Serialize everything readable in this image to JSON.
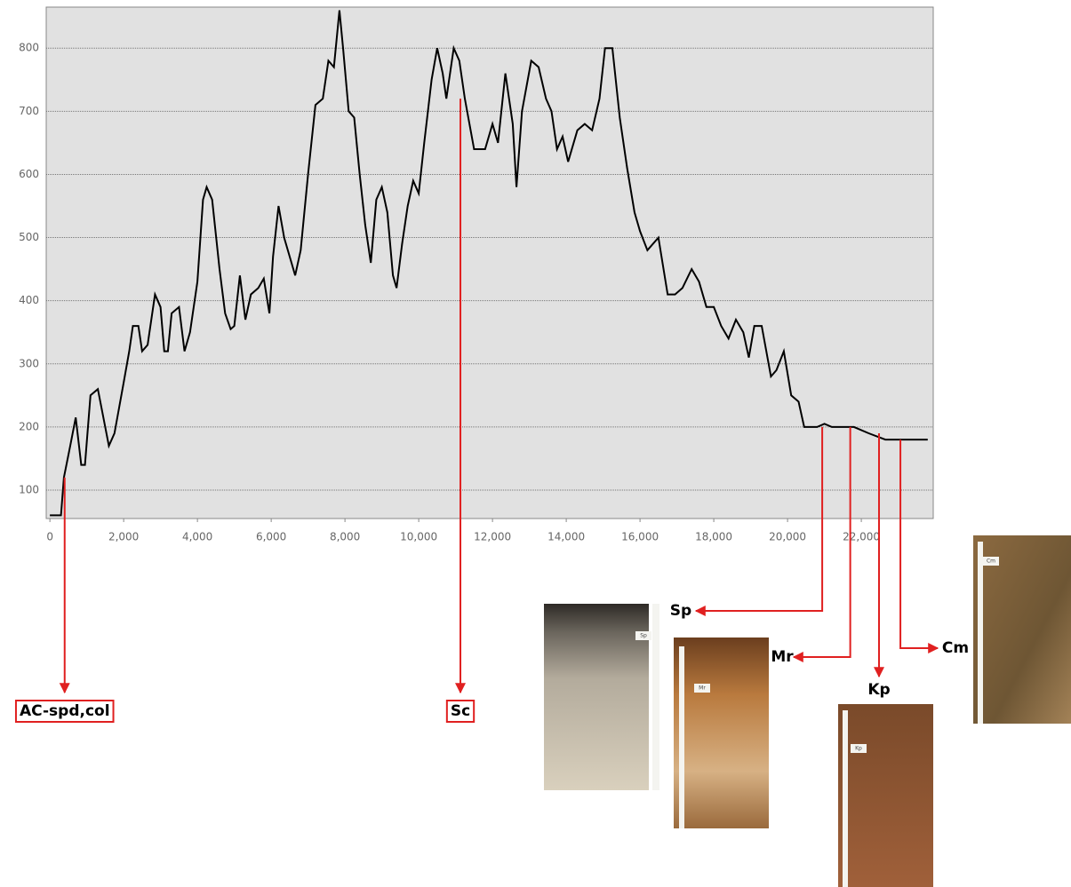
{
  "chart_data": {
    "type": "line",
    "x": [
      0,
      300,
      380,
      550,
      700,
      850,
      950,
      1100,
      1300,
      1600,
      1750,
      2000,
      2150,
      2250,
      2400,
      2500,
      2650,
      2850,
      3000,
      3100,
      3200,
      3300,
      3500,
      3650,
      3800,
      4000,
      4150,
      4250,
      4400,
      4600,
      4750,
      4900,
      5000,
      5150,
      5300,
      5450,
      5650,
      5800,
      5950,
      6050,
      6200,
      6350,
      6500,
      6650,
      6800,
      7000,
      7200,
      7400,
      7550,
      7700,
      7850,
      7950,
      8100,
      8250,
      8400,
      8550,
      8700,
      8850,
      9000,
      9150,
      9300,
      9400,
      9550,
      9700,
      9850,
      10000,
      10150,
      10350,
      10500,
      10650,
      10750,
      10950,
      11100,
      11250,
      11500,
      11800,
      12000,
      12150,
      12350,
      12550,
      12650,
      12800,
      13050,
      13250,
      13450,
      13600,
      13750,
      13900,
      14050,
      14300,
      14500,
      14700,
      14900,
      15050,
      15250,
      15450,
      15650,
      15850,
      16000,
      16200,
      16500,
      16750,
      16950,
      17150,
      17400,
      17600,
      17800,
      18000,
      18200,
      18400,
      18600,
      18800,
      18950,
      19100,
      19300,
      19550,
      19700,
      19900,
      20100,
      20300,
      20450,
      20800,
      21000,
      21200,
      21800,
      22200,
      22650,
      23800
    ],
    "values": [
      60,
      60,
      120,
      170,
      215,
      140,
      140,
      250,
      260,
      170,
      190,
      270,
      320,
      360,
      360,
      320,
      330,
      410,
      390,
      320,
      320,
      380,
      390,
      320,
      350,
      430,
      560,
      580,
      560,
      450,
      380,
      355,
      360,
      440,
      370,
      410,
      420,
      435,
      380,
      470,
      550,
      500,
      470,
      440,
      480,
      600,
      710,
      720,
      780,
      770,
      860,
      800,
      700,
      690,
      600,
      520,
      460,
      560,
      580,
      540,
      440,
      420,
      490,
      550,
      590,
      570,
      650,
      750,
      800,
      760,
      720,
      800,
      780,
      720,
      640,
      640,
      680,
      650,
      760,
      680,
      580,
      700,
      780,
      770,
      720,
      700,
      640,
      660,
      620,
      670,
      680,
      670,
      720,
      800,
      800,
      690,
      610,
      540,
      510,
      480,
      500,
      410,
      410,
      420,
      450,
      430,
      390,
      390,
      360,
      340,
      370,
      350,
      310,
      360,
      360,
      280,
      290,
      320,
      250,
      240,
      200,
      200,
      205,
      200,
      200,
      190,
      180,
      180
    ],
    "color": "#000000",
    "xlim": [
      -100,
      23950
    ],
    "ylim": [
      55,
      865
    ],
    "xticks": [
      {
        "value": 0,
        "label": "0"
      },
      {
        "value": 2000,
        "label": "2,000"
      },
      {
        "value": 4000,
        "label": "4,000"
      },
      {
        "value": 6000,
        "label": "6,000"
      },
      {
        "value": 8000,
        "label": "8,000"
      },
      {
        "value": 10000,
        "label": "10,000"
      },
      {
        "value": 12000,
        "label": "12,000"
      },
      {
        "value": 14000,
        "label": "14,000"
      },
      {
        "value": 16000,
        "label": "16,000"
      },
      {
        "value": 18000,
        "label": "18,000"
      },
      {
        "value": 20000,
        "label": "20,000"
      },
      {
        "value": 22000,
        "label": "22,000"
      }
    ],
    "yticks": [
      100,
      200,
      300,
      400,
      500,
      600,
      700,
      800
    ],
    "grid": true,
    "annotations": [
      {
        "label": "AC-spd,col",
        "x": 400,
        "y": 120
      },
      {
        "label": "Sc",
        "x": 11130,
        "y": 720
      },
      {
        "label": "Sp",
        "x": 20940,
        "y": 200
      },
      {
        "label": "Mr",
        "x": 21700,
        "y": 200
      },
      {
        "label": "Kp",
        "x": 22480,
        "y": 190
      },
      {
        "label": "Cm",
        "x": 23060,
        "y": 180
      }
    ],
    "photo_tags": [
      "Sp",
      "Mr",
      "Kp",
      "Cm"
    ]
  }
}
